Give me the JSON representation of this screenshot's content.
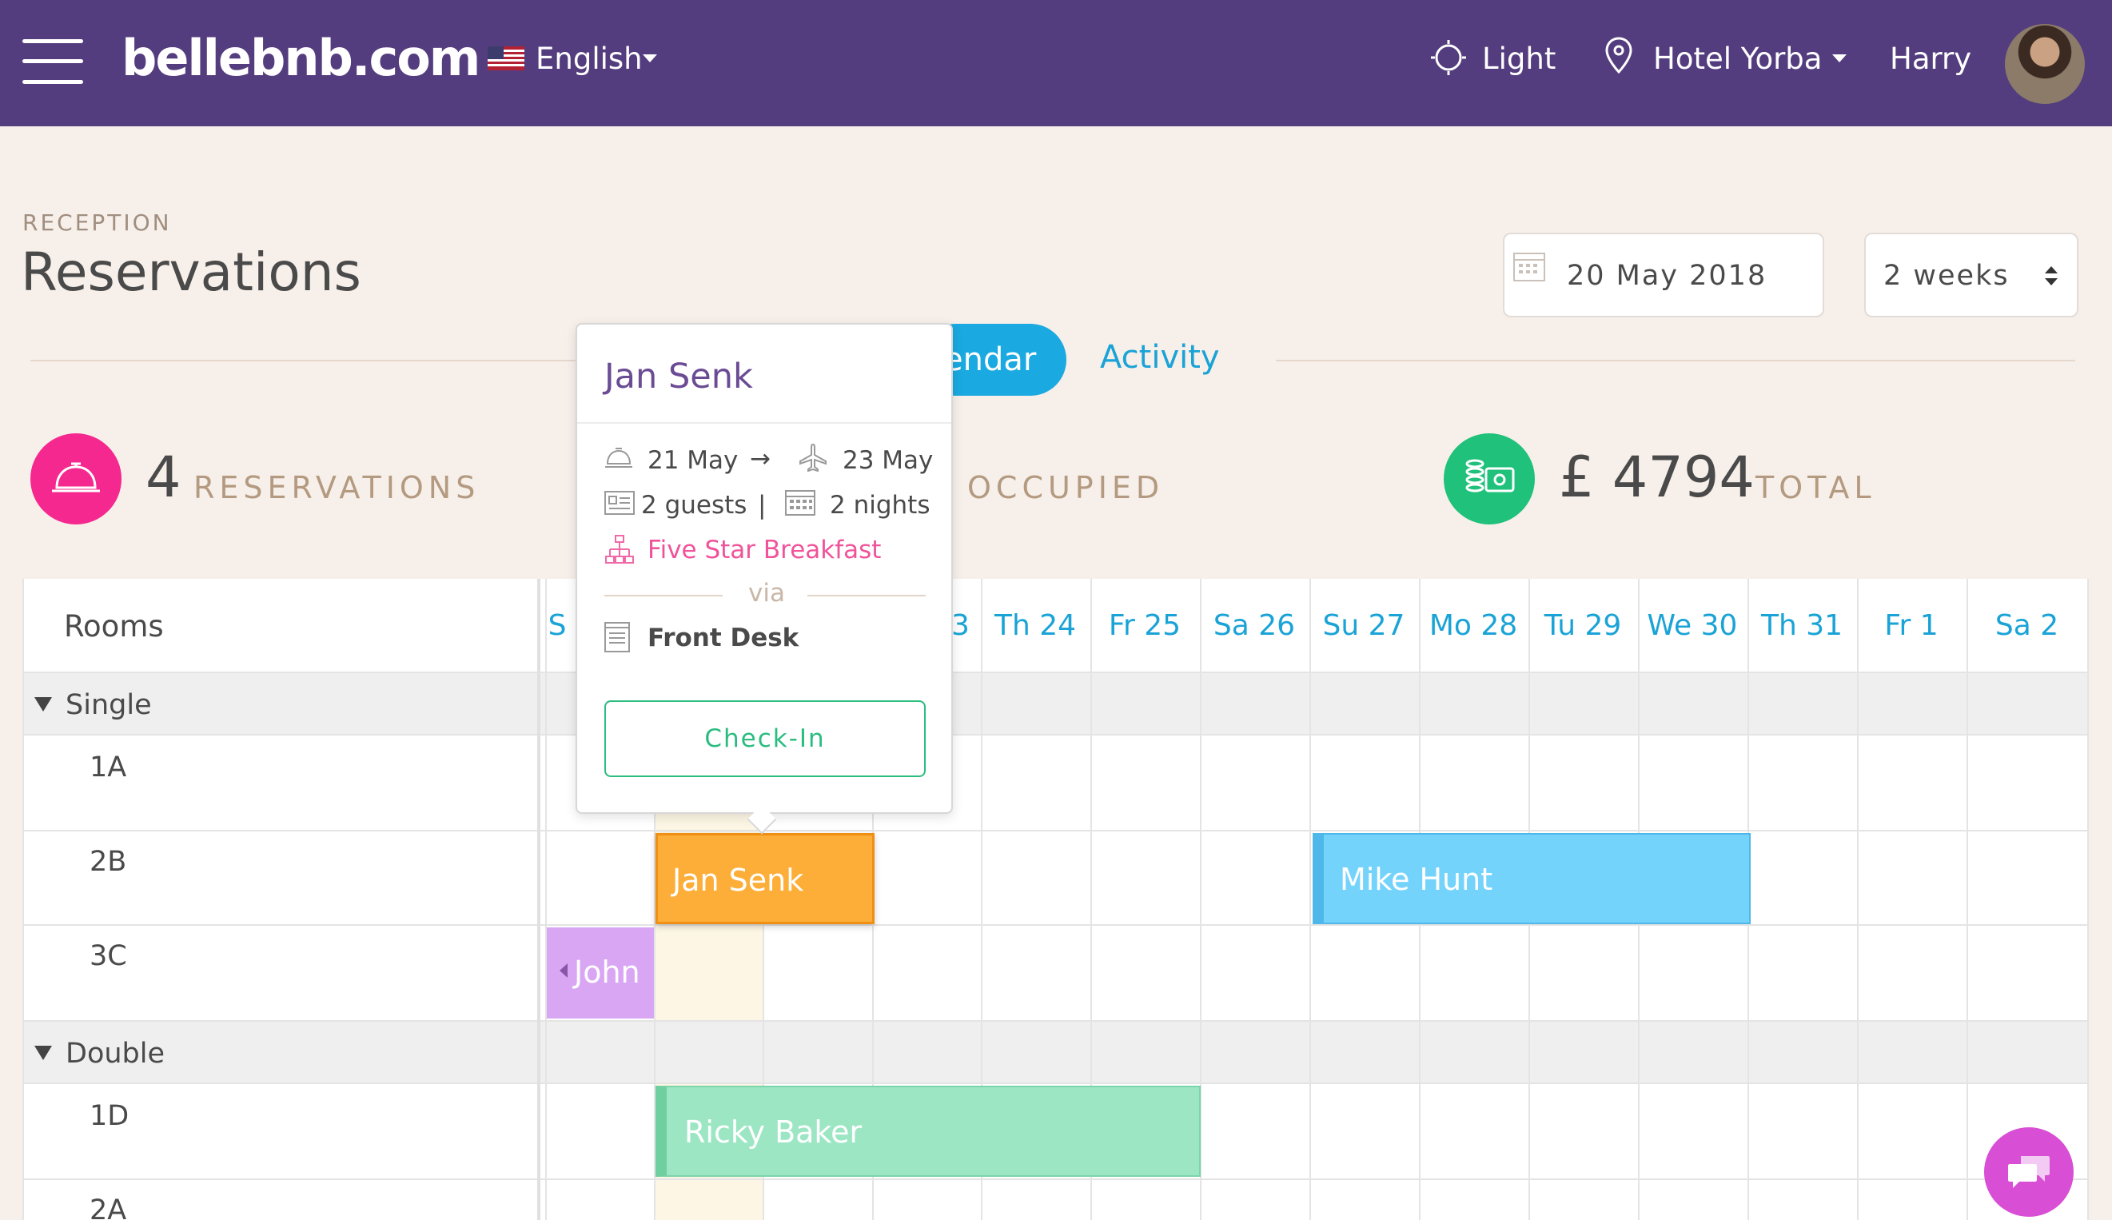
{
  "topbar": {
    "logo": "bellebnb.com",
    "language": "English",
    "theme": "Light",
    "hotel": "Hotel Yorba",
    "user": "Harry"
  },
  "header": {
    "section": "RECEPTION",
    "title": "Reservations",
    "date": "20 May 2018",
    "range": "2 weeks"
  },
  "tabs": {
    "calendar": "endar",
    "activity": "Activity"
  },
  "stats": {
    "reservations_count": "4",
    "reservations_label": "RESERVATIONS",
    "occupied_label": "OCCUPIED",
    "total_amount": "£ 4794",
    "total_label": "TOTAL"
  },
  "calendar": {
    "rooms_header": "Rooms",
    "days": [
      "S",
      "3",
      "Th 24",
      "Fr 25",
      "Sa 26",
      "Su 27",
      "Mo 28",
      "Tu 29",
      "We 30",
      "Th 31",
      "Fr 1",
      "Sa 2"
    ],
    "groups": [
      {
        "name": "Single",
        "rooms": [
          "1A",
          "2B",
          "3C"
        ]
      },
      {
        "name": "Double",
        "rooms": [
          "1D",
          "2A"
        ]
      }
    ],
    "bookings": {
      "jan": "Jan Senk",
      "mike": "Mike Hunt",
      "john": "John",
      "ricky": "Ricky Baker"
    }
  },
  "popup": {
    "guest_name": "Jan Senk",
    "checkin_date": "21 May",
    "arrow": "→",
    "checkout_date": "23 May",
    "guests": "2 guests",
    "separator": "|",
    "nights": "2 nights",
    "package": "Five Star Breakfast",
    "via": "via",
    "source": "Front Desk",
    "checkin_button": "Check-In"
  },
  "colors": {
    "topbar": "#543d7e",
    "accent_blue": "#1aa9e0",
    "pink": "#f5288f",
    "green": "#1fc17b",
    "orange": "#fdae38",
    "sky": "#74d3fb",
    "lavender": "#d9a6f4",
    "mint": "#9ce6c4"
  }
}
